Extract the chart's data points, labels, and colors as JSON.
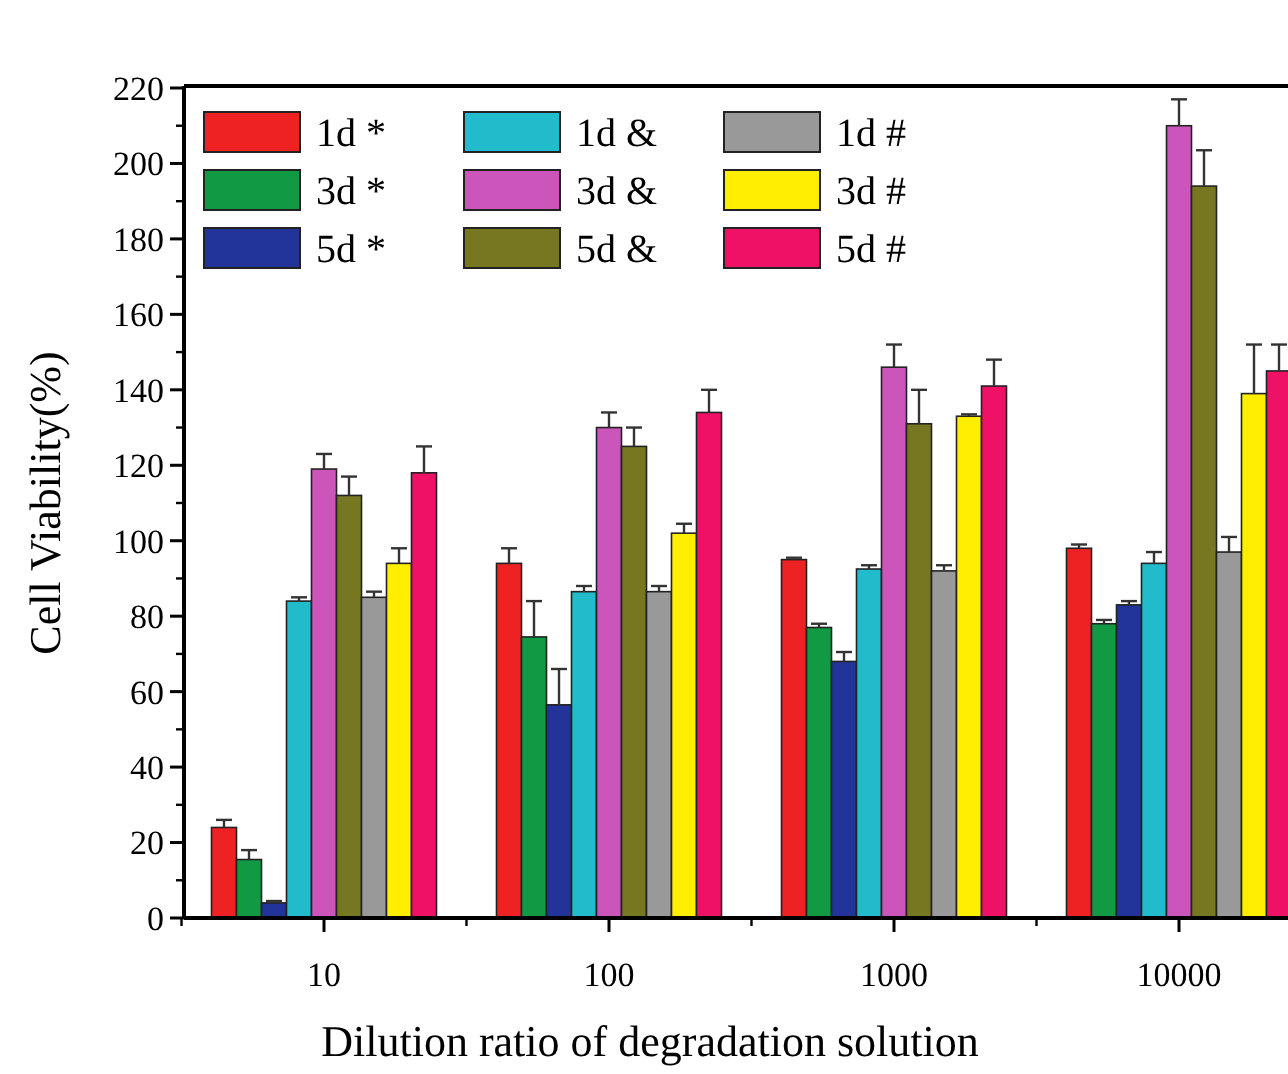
{
  "chart_data": {
    "type": "bar",
    "xlabel": "Dilution ratio of degradation solution",
    "ylabel": "Cell Viability(%)",
    "categories": [
      "10",
      "100",
      "1000",
      "10000"
    ],
    "ylim": [
      0,
      220
    ],
    "yticks": [
      0,
      20,
      40,
      60,
      80,
      100,
      120,
      140,
      160,
      180,
      200,
      220
    ],
    "grid": false,
    "legend": "top left",
    "series": [
      {
        "name": "1d *",
        "color": "#ee2222",
        "values": [
          24,
          94,
          95,
          98
        ],
        "errors": [
          2,
          4,
          0.5,
          1
        ]
      },
      {
        "name": "3d *",
        "color": "#119944",
        "values": [
          15.5,
          74.5,
          77,
          78
        ],
        "errors": [
          2.5,
          9.5,
          1,
          1
        ]
      },
      {
        "name": "5d *",
        "color": "#223399",
        "values": [
          4,
          56.5,
          68,
          83
        ],
        "errors": [
          0.5,
          9.5,
          2.5,
          1
        ]
      },
      {
        "name": "1d &",
        "color": "#22bbcc",
        "values": [
          84,
          86.5,
          92.5,
          94
        ],
        "errors": [
          1,
          1.5,
          1,
          3
        ]
      },
      {
        "name": "3d &",
        "color": "#cc55bb",
        "values": [
          119,
          130,
          146,
          210
        ],
        "errors": [
          4,
          4,
          6,
          7
        ]
      },
      {
        "name": "5d &",
        "color": "#777722",
        "values": [
          112,
          125,
          131,
          194
        ],
        "errors": [
          5,
          5,
          9,
          9.5
        ]
      },
      {
        "name": "1d #",
        "color": "#999999",
        "values": [
          85,
          86.5,
          92,
          97
        ],
        "errors": [
          1.5,
          1.5,
          1.5,
          4
        ]
      },
      {
        "name": "3d #",
        "color": "#ffee00",
        "values": [
          94,
          102,
          133,
          139
        ],
        "errors": [
          4,
          2.5,
          0.5,
          13
        ]
      },
      {
        "name": "5d #",
        "color": "#ee1166",
        "values": [
          118,
          134,
          141,
          145
        ],
        "errors": [
          7,
          6,
          7,
          7
        ]
      }
    ]
  }
}
